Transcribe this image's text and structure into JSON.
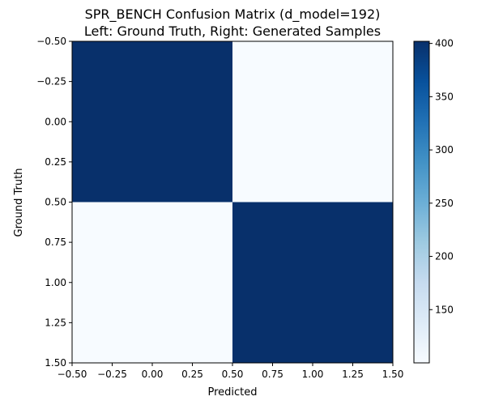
{
  "chart_data": {
    "type": "heatmap",
    "title_lines": [
      "SPR_BENCH Confusion Matrix (d_model=192)",
      "Left: Ground Truth, Right: Generated Samples"
    ],
    "xlabel": "Predicted",
    "ylabel": "Ground Truth",
    "x_ticks": [
      "-0.50",
      "-0.25",
      "0.00",
      "0.25",
      "0.50",
      "0.75",
      "1.00",
      "1.25",
      "1.50"
    ],
    "y_ticks": [
      "-0.50",
      "-0.25",
      "0.00",
      "0.25",
      "0.50",
      "0.75",
      "1.00",
      "1.25",
      "1.50"
    ],
    "xlim": [
      -0.5,
      1.5
    ],
    "ylim": [
      1.5,
      -0.5
    ],
    "matrix": [
      [
        402,
        100
      ],
      [
        100,
        402
      ]
    ],
    "colorbar": {
      "colormap": "Blues",
      "range": [
        100,
        402
      ],
      "ticks": [
        "150",
        "200",
        "250",
        "300",
        "350",
        "400"
      ]
    }
  }
}
